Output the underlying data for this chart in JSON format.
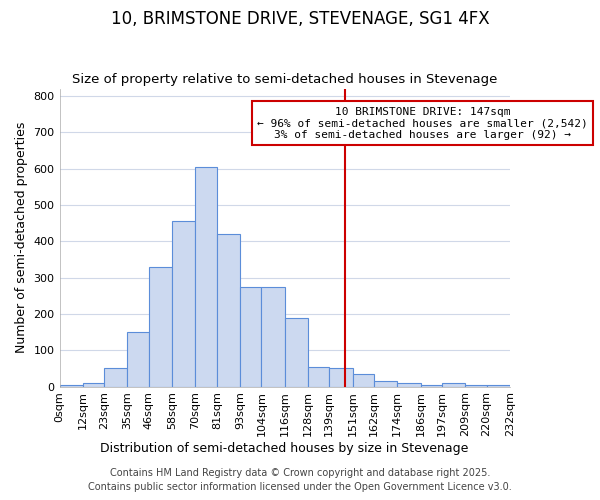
{
  "title1": "10, BRIMSTONE DRIVE, STEVENAGE, SG1 4FX",
  "title2": "Size of property relative to semi-detached houses in Stevenage",
  "xlabel": "Distribution of semi-detached houses by size in Stevenage",
  "ylabel": "Number of semi-detached properties",
  "bin_edges": [
    0,
    12,
    23,
    35,
    46,
    58,
    70,
    81,
    93,
    104,
    116,
    128,
    139,
    151,
    162,
    174,
    186,
    197,
    209,
    220,
    232
  ],
  "bar_heights": [
    5,
    10,
    50,
    150,
    330,
    455,
    605,
    420,
    275,
    275,
    190,
    55,
    50,
    35,
    15,
    10,
    5,
    10,
    5,
    3
  ],
  "bar_facecolor": "#ccd9f0",
  "bar_edgecolor": "#5b8dd9",
  "bar_linewidth": 0.8,
  "vline_x": 147,
  "vline_color": "#cc0000",
  "vline_linewidth": 1.5,
  "annotation_title": "10 BRIMSTONE DRIVE: 147sqm",
  "annotation_line1": "← 96% of semi-detached houses are smaller (2,542)",
  "annotation_line2": "3% of semi-detached houses are larger (92) →",
  "annotation_box_edgecolor": "#cc0000",
  "annotation_box_facecolor": "#ffffff",
  "ylim": [
    0,
    820
  ],
  "yticks": [
    0,
    100,
    200,
    300,
    400,
    500,
    600,
    700,
    800
  ],
  "tick_labels": [
    "0sqm",
    "12sqm",
    "23sqm",
    "35sqm",
    "46sqm",
    "58sqm",
    "70sqm",
    "81sqm",
    "93sqm",
    "104sqm",
    "116sqm",
    "128sqm",
    "139sqm",
    "151sqm",
    "162sqm",
    "174sqm",
    "186sqm",
    "197sqm",
    "209sqm",
    "220sqm",
    "232sqm"
  ],
  "bg_color": "#ffffff",
  "grid_color": "#d0d8e8",
  "footer1": "Contains HM Land Registry data © Crown copyright and database right 2025.",
  "footer2": "Contains public sector information licensed under the Open Government Licence v3.0.",
  "title1_fontsize": 12,
  "title2_fontsize": 9.5,
  "xlabel_fontsize": 9,
  "ylabel_fontsize": 9,
  "tick_fontsize": 8,
  "annotation_fontsize": 8,
  "footer_fontsize": 7
}
